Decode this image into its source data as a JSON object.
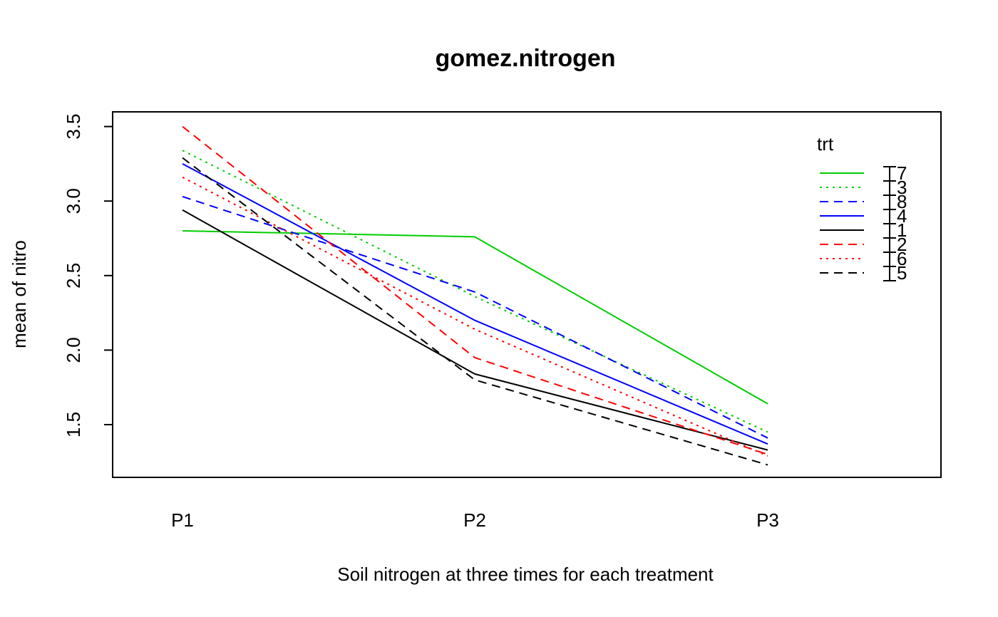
{
  "chart_data": {
    "type": "line",
    "title": "gomez.nitrogen",
    "xlabel": "Soil nitrogen at three times for each treatment",
    "ylabel": "mean of  nitro",
    "categories": [
      "P1",
      "P2",
      "P3"
    ],
    "ylim": [
      1.2,
      3.6
    ],
    "yticks": [
      "1.5",
      "2.0",
      "2.5",
      "3.0",
      "3.5"
    ],
    "grid": false,
    "legend": {
      "title": "trt",
      "position": "top-right"
    },
    "series": [
      {
        "name": "7",
        "values": [
          2.8,
          2.76,
          1.64
        ],
        "color": "#00cd00",
        "dash": "solid"
      },
      {
        "name": "3",
        "values": [
          3.34,
          2.36,
          1.45
        ],
        "color": "#00cd00",
        "dash": "dotted"
      },
      {
        "name": "8",
        "values": [
          3.03,
          2.39,
          1.41
        ],
        "color": "#0000ff",
        "dash": "dashed"
      },
      {
        "name": "4",
        "values": [
          3.25,
          2.2,
          1.37
        ],
        "color": "#0000ff",
        "dash": "solid"
      },
      {
        "name": "1",
        "values": [
          2.94,
          1.84,
          1.33
        ],
        "color": "#000000",
        "dash": "solid"
      },
      {
        "name": "2",
        "values": [
          3.5,
          1.95,
          1.3
        ],
        "color": "#ff0000",
        "dash": "dashed"
      },
      {
        "name": "6",
        "values": [
          3.16,
          2.14,
          1.29
        ],
        "color": "#ff0000",
        "dash": "dotted"
      },
      {
        "name": "5",
        "values": [
          3.29,
          1.8,
          1.23
        ],
        "color": "#000000",
        "dash": "dashed"
      }
    ]
  }
}
